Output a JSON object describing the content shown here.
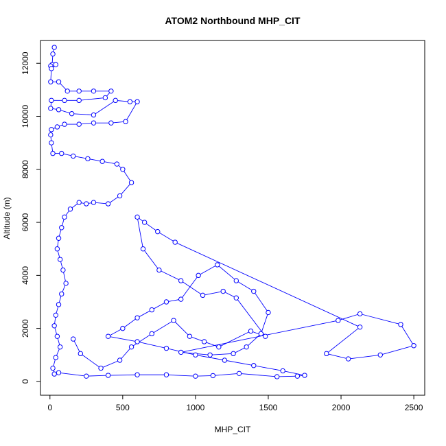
{
  "chart_data": {
    "type": "scatter",
    "title": "ATOM2 Northbound MHP_CIT",
    "xlabel": "MHP_CIT",
    "ylabel": "Altitude (m)",
    "xlim": [
      -65,
      2575
    ],
    "ylim": [
      -520,
      12860
    ],
    "xticks": [
      0,
      500,
      1000,
      1500,
      2000,
      2500
    ],
    "yticks": [
      0,
      2000,
      4000,
      6000,
      8000,
      10000,
      12000
    ],
    "grid": false,
    "legend": "none",
    "color": "#0000ff",
    "series": [
      {
        "values": [
          [
            30,
            12600
          ],
          [
            20,
            12350
          ],
          [
            15,
            11950
          ],
          [
            5,
            11900
          ],
          [
            40,
            11950
          ],
          [
            10,
            11800
          ],
          [
            5,
            11300
          ],
          [
            60,
            11300
          ],
          [
            120,
            10950
          ],
          [
            200,
            10950
          ],
          [
            300,
            10950
          ],
          [
            420,
            10950
          ],
          [
            380,
            10700
          ],
          [
            200,
            10600
          ],
          [
            100,
            10600
          ],
          [
            10,
            10600
          ],
          [
            5,
            10300
          ],
          [
            60,
            10250
          ],
          [
            150,
            10100
          ],
          [
            300,
            10050
          ],
          [
            450,
            10600
          ],
          [
            550,
            10550
          ],
          [
            600,
            10550
          ],
          [
            520,
            9800
          ],
          [
            420,
            9750
          ],
          [
            300,
            9750
          ],
          [
            200,
            9700
          ],
          [
            100,
            9700
          ],
          [
            50,
            9600
          ],
          [
            10,
            9500
          ],
          [
            5,
            9300
          ],
          [
            10,
            9000
          ],
          [
            20,
            8600
          ],
          [
            80,
            8600
          ],
          [
            160,
            8500
          ],
          [
            260,
            8400
          ],
          [
            360,
            8300
          ],
          [
            460,
            8200
          ],
          [
            500,
            8000
          ],
          [
            560,
            7500
          ],
          [
            480,
            7000
          ],
          [
            400,
            6700
          ],
          [
            300,
            6750
          ],
          [
            250,
            6700
          ],
          [
            200,
            6750
          ],
          [
            140,
            6500
          ],
          [
            100,
            6200
          ],
          [
            80,
            5800
          ],
          [
            60,
            5400
          ],
          [
            50,
            5000
          ],
          [
            70,
            4600
          ],
          [
            90,
            4200
          ],
          [
            110,
            3700
          ],
          [
            80,
            3300
          ],
          [
            60,
            2900
          ],
          [
            40,
            2500
          ],
          [
            30,
            2100
          ],
          [
            50,
            1700
          ],
          [
            70,
            1300
          ],
          [
            40,
            900
          ],
          [
            20,
            500
          ],
          [
            30,
            280
          ],
          [
            60,
            330
          ],
          [
            250,
            200
          ],
          [
            400,
            230
          ],
          [
            600,
            250
          ],
          [
            800,
            250
          ],
          [
            1000,
            200
          ],
          [
            1120,
            220
          ],
          [
            1300,
            300
          ],
          [
            1560,
            180
          ],
          [
            1700,
            200
          ],
          [
            1750,
            230
          ],
          [
            1600,
            400
          ],
          [
            1400,
            600
          ],
          [
            1200,
            800
          ],
          [
            1000,
            1000
          ],
          [
            800,
            1250
          ],
          [
            600,
            1500
          ],
          [
            400,
            1700
          ],
          [
            500,
            2000
          ],
          [
            600,
            2400
          ],
          [
            700,
            2700
          ],
          [
            800,
            3000
          ],
          [
            900,
            3100
          ],
          [
            1020,
            4000
          ],
          [
            1150,
            4400
          ],
          [
            1280,
            3800
          ],
          [
            1400,
            3400
          ],
          [
            1500,
            2600
          ],
          [
            1450,
            1800
          ],
          [
            1350,
            1300
          ],
          [
            1260,
            1050
          ],
          [
            1100,
            1000
          ],
          [
            900,
            1100
          ],
          [
            1980,
            2300
          ],
          [
            2130,
            2550
          ],
          [
            2410,
            2150
          ],
          [
            2500,
            1350
          ],
          [
            2270,
            1000
          ],
          [
            2050,
            850
          ],
          [
            1900,
            1050
          ],
          [
            2130,
            2050
          ],
          [
            860,
            5250
          ],
          [
            740,
            5650
          ],
          [
            650,
            6000
          ],
          [
            600,
            6200
          ],
          [
            640,
            5000
          ],
          [
            750,
            4200
          ],
          [
            900,
            3800
          ],
          [
            1050,
            3250
          ],
          [
            1190,
            3400
          ],
          [
            1280,
            3150
          ],
          [
            1480,
            1700
          ],
          [
            1380,
            1900
          ],
          [
            1160,
            1300
          ],
          [
            1060,
            1500
          ],
          [
            960,
            1700
          ],
          [
            850,
            2300
          ],
          [
            700,
            1800
          ],
          [
            560,
            1300
          ],
          [
            480,
            800
          ],
          [
            350,
            500
          ],
          [
            210,
            1050
          ],
          [
            160,
            1600
          ]
        ]
      }
    ]
  }
}
